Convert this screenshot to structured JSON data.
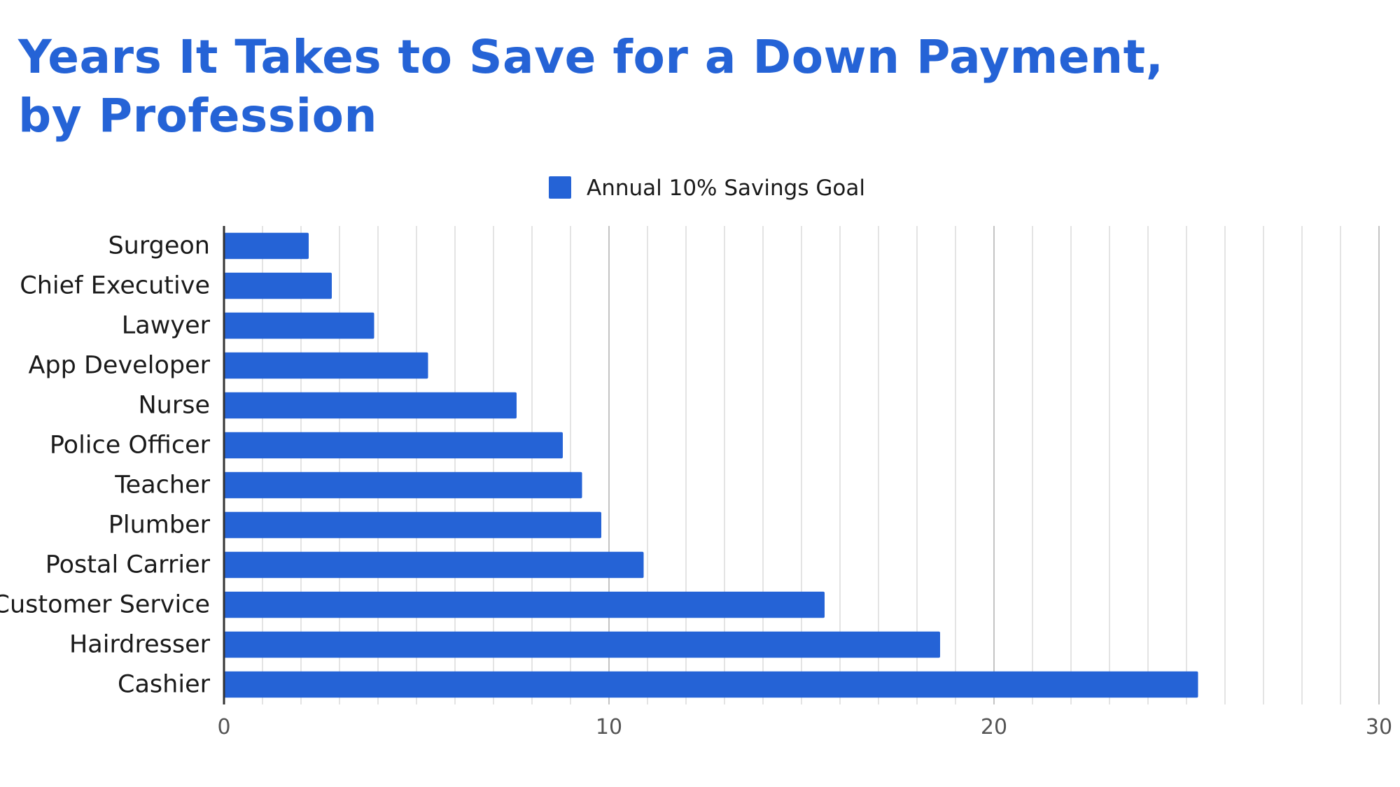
{
  "chart_data": {
    "type": "bar",
    "orientation": "horizontal",
    "title": "Years It Takes to Save for a Down Payment, by Profession",
    "categories": [
      "Surgeon",
      "Chief Executive",
      "Lawyer",
      "App Developer",
      "Nurse",
      "Police Officer",
      "Teacher",
      "Plumber",
      "Postal Carrier",
      "Customer Service",
      "Hairdresser",
      "Cashier"
    ],
    "series": [
      {
        "name": "Annual 10% Savings Goal",
        "values": [
          2.2,
          2.8,
          3.9,
          5.3,
          7.6,
          8.8,
          9.3,
          9.8,
          10.9,
          15.6,
          18.6,
          25.3
        ]
      }
    ],
    "xlim": [
      0,
      30
    ],
    "xticks": [
      "0",
      "10",
      "20",
      "30"
    ],
    "xlabel": "",
    "ylabel": "",
    "legend_position": "top-center",
    "grid": true,
    "bar_color": "#2563d6",
    "title_color": "#2563d6"
  }
}
